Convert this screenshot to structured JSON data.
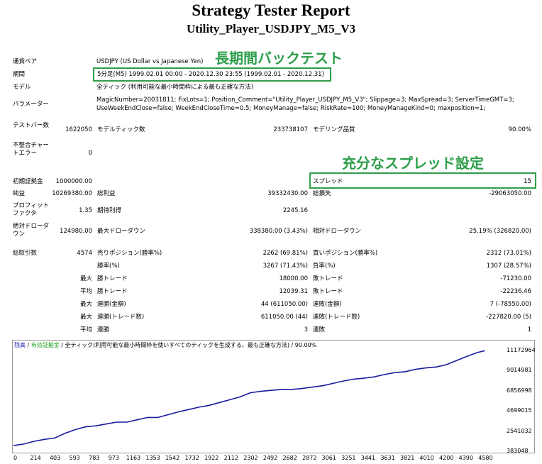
{
  "report": {
    "title": "Strategy Tester Report",
    "subtitle": "Utility_Player_USDJPY_M5_V3"
  },
  "summary": {
    "pair_label": "通貨ペア",
    "pair_value": "USDJPY (US Dollar vs Japanese Yen)",
    "period_label": "期間",
    "period_value": "5分足(M5) 1999.02.01 00:00 - 2020.12.30 23:55 (1999.02.01 - 2020.12.31)",
    "model_label": "モデル",
    "model_value": "全ティック (利用可能な最小時間枠による最も正確な方法)",
    "params_label": "パラメーター",
    "params_line1": "MagicNumber=20031811; FixLots=1; Position_Comment=\"Utility_Player_USDJPY_M5_V3\"; Slippage=3; MaxSpread=3; ServerTimeGMT=3;",
    "params_line2": "UseWeekEndClose=false; WeekEndCloseTime=0.5; MoneyManage=false; RiskRate=100; MoneyManageKind=0; maxposition=1;"
  },
  "annotations": {
    "backtest": "長期間バックテスト",
    "spread": "充分なスプレッド設定"
  },
  "stats": {
    "bars_label": "テストバー数",
    "bars_value": "1622050",
    "ticks_label": "モデルティック数",
    "ticks_value": "233738107",
    "quality_label": "モデリング品質",
    "quality_value": "90.00%",
    "mismatch_label": "不整合チャートエラー",
    "mismatch_value": "0",
    "deposit_label": "初期証拠金",
    "deposit_value": "1000000.00",
    "spread_label": "スプレッド",
    "spread_value": "15",
    "net_label": "純益",
    "net_value": "10269380.00",
    "gross_profit_label": "総利益",
    "gross_profit_value": "39332430.00",
    "gross_loss_label": "総損失",
    "gross_loss_value": "-29063050.00",
    "pf_label": "プロフィットファクタ",
    "pf_value": "1.35",
    "expected_label": "期待利得",
    "expected_value": "2245.16",
    "abs_dd_label": "絶対ドローダウン",
    "abs_dd_value": "124980.00",
    "max_dd_label": "最大ドローダウン",
    "max_dd_value": "338380.00 (3.43%)",
    "rel_dd_label": "相対ドローダウン",
    "rel_dd_value": "25.19% (326820.00)",
    "trades_label": "総取引数",
    "trades_value": "4574",
    "short_label": "売りポジション(勝率%)",
    "short_value": "2262 (69.81%)",
    "long_label": "買いポジション(勝率%)",
    "long_value": "2312 (73.01%)",
    "win_label": "勝率(%)",
    "win_value": "3267 (71.43%)",
    "lose_label": "負率(%)",
    "lose_value": "1307 (28.57%)",
    "largest_label": "最大",
    "largest_win_label": "勝トレード",
    "largest_win_value": "18000.00",
    "largest_loss_label": "敗トレード",
    "largest_loss_value": "-71230.00",
    "average_label": "平均",
    "avg_win_label": "勝トレード",
    "avg_win_value": "12039.31",
    "avg_loss_label": "敗トレード",
    "avg_loss_value": "-22236.46",
    "max1_label": "最大",
    "max_cons_wins_label": "連勝(金額)",
    "max_cons_wins_value": "44 (611050.00)",
    "max_cons_losses_label": "連敗(金額)",
    "max_cons_losses_value": "7 (-78550.00)",
    "max2_label": "最大",
    "max_cons_profit_label": "連勝(トレード数)",
    "max_cons_profit_value": "611050.00 (44)",
    "max_cons_loss_label": "連敗(トレード数)",
    "max_cons_loss_value": "-227820.00 (5)",
    "avg2_label": "平均",
    "avg_cons_wins_label": "連勝",
    "avg_cons_wins_value": "3",
    "avg_cons_losses_label": "連敗",
    "avg_cons_losses_value": "1"
  },
  "chart_legend": {
    "balance": "残高",
    "sep1": " / ",
    "equity": "有効証拠金",
    "sep2": " / ",
    "model": "全ティック(利用可能な最小時間枠を使いすべてのティックを生成する、最も正確な方法)",
    "sep3": " / ",
    "quality": "90.00%"
  },
  "chart_data": {
    "type": "line",
    "title": "",
    "xlabel": "",
    "ylabel": "",
    "xlim": [
      0,
      4770
    ],
    "ylim": [
      383048,
      11172964
    ],
    "x_ticks": [
      0,
      214,
      403,
      593,
      783,
      973,
      1163,
      1353,
      1542,
      1732,
      1922,
      2112,
      2302,
      2492,
      2682,
      2872,
      3061,
      3251,
      3441,
      3631,
      3821,
      4010,
      4200,
      4390,
      4580
    ],
    "y_ticks": [
      383048,
      2541032,
      4699015,
      6856998,
      9014981,
      11172964
    ],
    "grid": false,
    "legend": "top-left",
    "colors": {
      "balance": "#1a1aa0",
      "equity": "#1aa01a"
    },
    "series": [
      {
        "name": "残高",
        "x": [
          0,
          100,
          200,
          300,
          400,
          500,
          600,
          700,
          800,
          900,
          1000,
          1100,
          1200,
          1300,
          1400,
          1500,
          1600,
          1700,
          1800,
          1900,
          2000,
          2100,
          2200,
          2300,
          2400,
          2500,
          2600,
          2700,
          2800,
          2900,
          3000,
          3100,
          3200,
          3300,
          3400,
          3500,
          3600,
          3700,
          3800,
          3900,
          4000,
          4100,
          4200,
          4300,
          4400,
          4500,
          4574
        ],
        "y": [
          1000000,
          1150000,
          1450000,
          1650000,
          1800000,
          2300000,
          2700000,
          3000000,
          3100000,
          3300000,
          3500000,
          3500000,
          3750000,
          4000000,
          4000000,
          4300000,
          4600000,
          4850000,
          5100000,
          5300000,
          5600000,
          5900000,
          6200000,
          6650000,
          6800000,
          6900000,
          7000000,
          7000000,
          7100000,
          7250000,
          7400000,
          7650000,
          7900000,
          8100000,
          8200000,
          8350000,
          8600000,
          8800000,
          8900000,
          9150000,
          9300000,
          9400000,
          9650000,
          10100000,
          10550000,
          10950000,
          11150000
        ]
      }
    ]
  }
}
